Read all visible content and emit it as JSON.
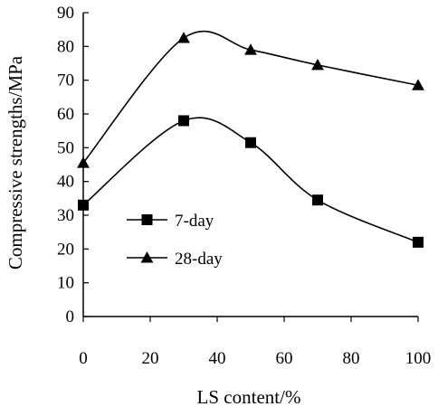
{
  "chart_data": {
    "type": "line",
    "xlabel": "LS content/%",
    "ylabel": "Compressive strengths/MPa",
    "xlim": [
      0,
      100
    ],
    "ylim": [
      0,
      90
    ],
    "xticks": [
      0,
      20,
      40,
      60,
      80,
      100
    ],
    "yticks": [
      0,
      10,
      20,
      30,
      40,
      50,
      60,
      70,
      80,
      90
    ],
    "grid": false,
    "legend_position": "center-left",
    "series": [
      {
        "name": "7-day",
        "marker": "square",
        "color": "#000000",
        "x": [
          0,
          30,
          50,
          70,
          100
        ],
        "y": [
          33,
          58,
          51.5,
          34.5,
          22
        ]
      },
      {
        "name": "28-day",
        "marker": "triangle",
        "color": "#000000",
        "x": [
          0,
          30,
          50,
          70,
          100
        ],
        "y": [
          45.5,
          82.5,
          79,
          74.5,
          68.5
        ]
      }
    ]
  }
}
